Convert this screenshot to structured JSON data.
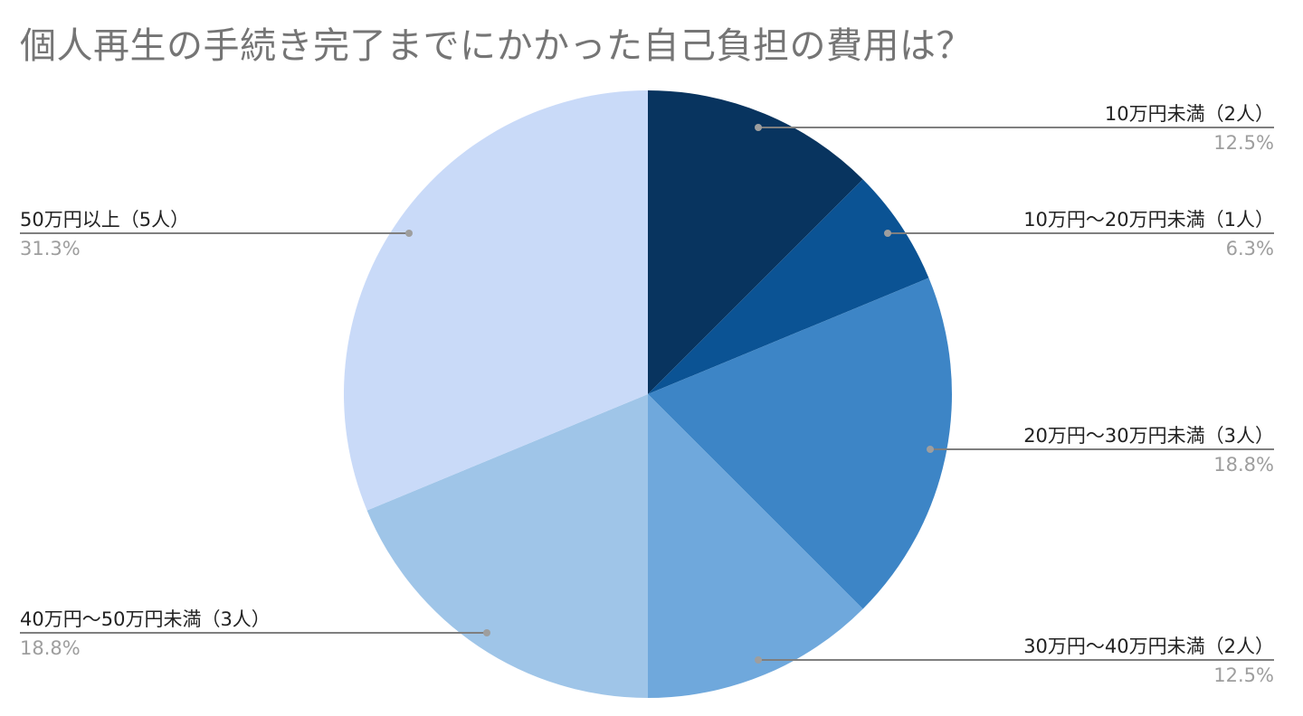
{
  "chart_data": {
    "type": "pie",
    "title": "個人再生の手続き完了までにかかった自己負担の費用は？",
    "slices": [
      {
        "label": "10万円未満（2人）",
        "value": 2,
        "percent": "12.5%",
        "color": "#08345f"
      },
      {
        "label": "10万円〜20万円未満（1人）",
        "value": 1,
        "percent": "6.3%",
        "color": "#0b5394"
      },
      {
        "label": "20万円〜30万円未満（3人）",
        "value": 3,
        "percent": "18.8%",
        "color": "#3d85c6"
      },
      {
        "label": "30万円〜40万円未満（2人）",
        "value": 2,
        "percent": "12.5%",
        "color": "#6fa8dc"
      },
      {
        "label": "40万円〜50万円未満（3人）",
        "value": 3,
        "percent": "18.8%",
        "color": "#9fc5e8"
      },
      {
        "label": "50万円以上（5人）",
        "value": 5,
        "percent": "31.3%",
        "color": "#c9daf8"
      }
    ],
    "legend": "callout-labels"
  }
}
